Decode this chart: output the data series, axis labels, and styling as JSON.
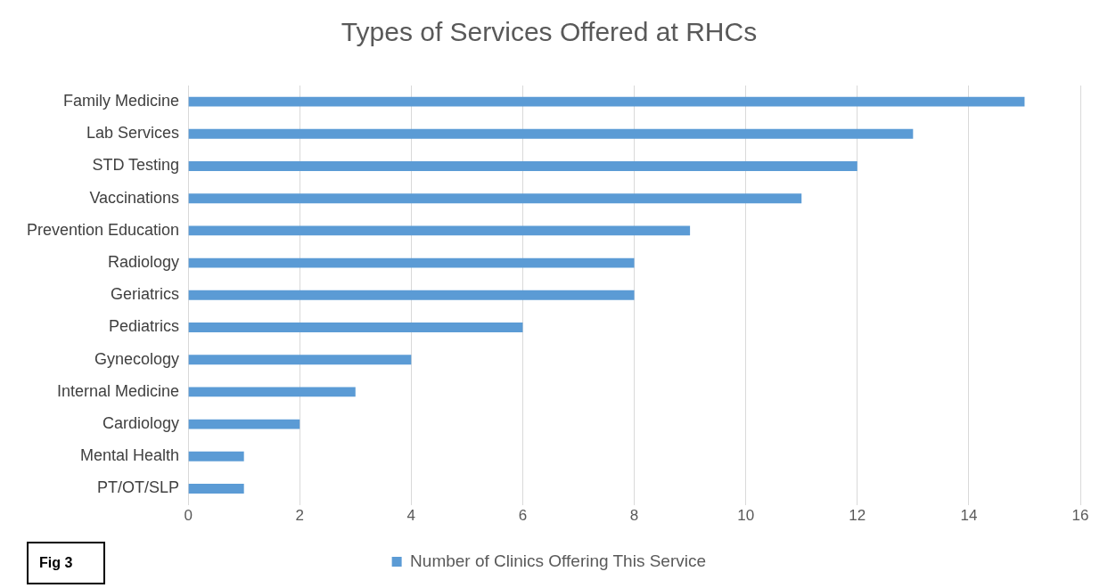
{
  "chart_data": {
    "type": "bar",
    "title": "Types of Services Offered at RHCs",
    "orientation": "horizontal",
    "categories": [
      "Family Medicine",
      "Lab Services",
      "STD Testing",
      "Vaccinations",
      "Prevention Education",
      "Radiology",
      "Geriatrics",
      "Pediatrics",
      "Gynecology",
      "Internal Medicine",
      "Cardiology",
      "Mental Health",
      "PT/OT/SLP"
    ],
    "series": [
      {
        "name": "Number of Clinics Offering This Service",
        "color": "#5b9bd5",
        "values": [
          15,
          13,
          12,
          11,
          9,
          8,
          8,
          6,
          4,
          3,
          2,
          1,
          1
        ]
      }
    ],
    "xlim": [
      0,
      16
    ],
    "xticks": [
      0,
      2,
      4,
      6,
      8,
      10,
      12,
      14,
      16
    ],
    "grid": "x",
    "legend": "bottom",
    "annotations": [
      "Fig 3"
    ]
  }
}
